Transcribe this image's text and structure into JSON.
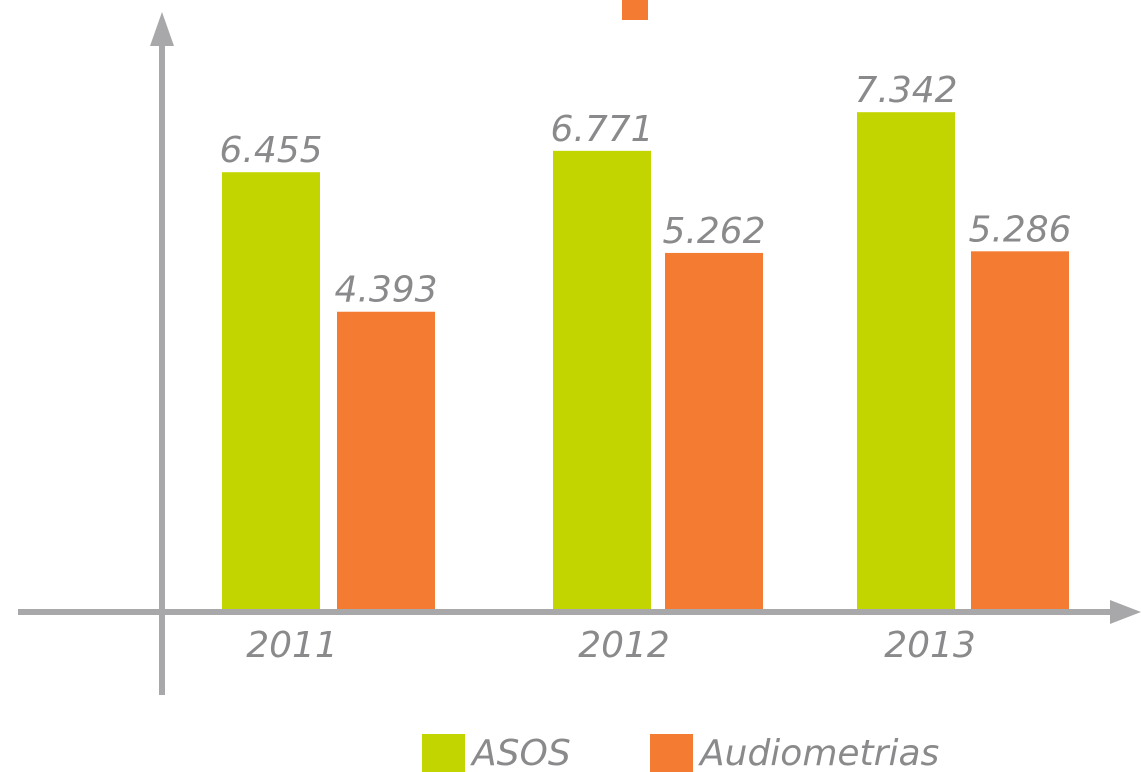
{
  "chart_data": {
    "type": "bar",
    "categories": [
      "2011",
      "2012",
      "2013"
    ],
    "series": [
      {
        "name": "ASOS",
        "color": "#c3d500",
        "values": [
          6455,
          6771,
          7342
        ],
        "value_labels": [
          "6.455",
          "6.771",
          "7.342"
        ]
      },
      {
        "name": "Audiometrias",
        "color": "#f47b32",
        "values": [
          4393,
          5262,
          5286
        ],
        "value_labels": [
          "4.393",
          "5.262",
          "5.286"
        ]
      }
    ],
    "ylim": [
      0,
      9000
    ]
  }
}
